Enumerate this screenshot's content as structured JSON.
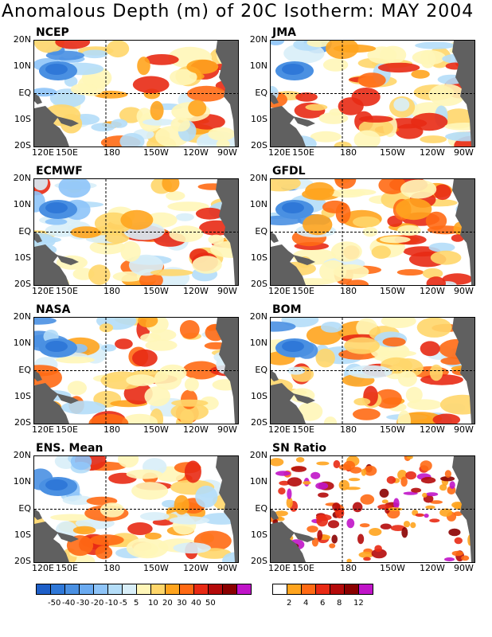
{
  "title": "Anomalous Depth (m) of 20C Isotherm: MAY 2004",
  "lat_labels": [
    "20N",
    "10N",
    "EQ",
    "10S",
    "20S"
  ],
  "lon_labels": [
    "120E",
    "150E",
    "180",
    "150W",
    "120W",
    "90W"
  ],
  "panels": [
    {
      "name": "NCEP"
    },
    {
      "name": "JMA"
    },
    {
      "name": "ECMWF"
    },
    {
      "name": "GFDL"
    },
    {
      "name": "NASA"
    },
    {
      "name": "BOM"
    },
    {
      "name": "ENS. Mean"
    },
    {
      "name": "SN Ratio"
    }
  ],
  "colorbar_anomaly": {
    "colors": [
      "#1e5fc8",
      "#2f78d8",
      "#4a90e2",
      "#6aaaf0",
      "#8ec4f8",
      "#b4ddf8",
      "#d8eef8",
      "#fff6b8",
      "#ffd66a",
      "#ffa41e",
      "#ff6a14",
      "#e82a14",
      "#b40a0a",
      "#8a0000",
      "#c014c8"
    ],
    "labels": [
      "-50",
      "-40",
      "-30",
      "-20",
      "-10",
      "-5",
      "5",
      "10",
      "20",
      "30",
      "40",
      "50"
    ]
  },
  "colorbar_sn": {
    "colors": [
      "#ffffff",
      "#ffa41e",
      "#ff6a14",
      "#e82a14",
      "#b40a0a",
      "#8a0000",
      "#c014c8"
    ],
    "labels": [
      "2",
      "4",
      "6",
      "8",
      "12"
    ]
  }
}
